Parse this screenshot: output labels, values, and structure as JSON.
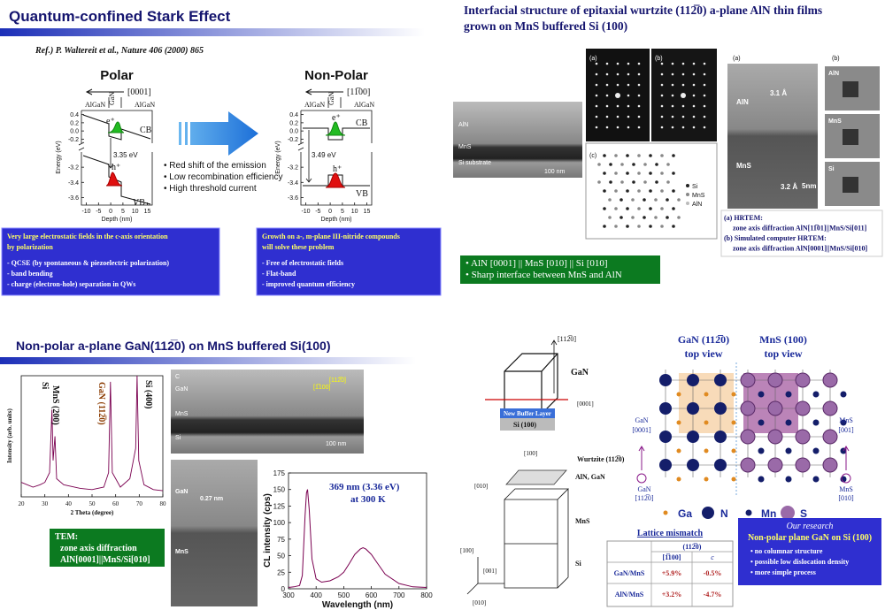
{
  "slides": [
    {
      "title": "Quantum-confined Stark Effect",
      "reference": "Ref.) P. Waltereit et al., Nature 406 (2000) 865",
      "polar": {
        "heading": "Polar",
        "direction": "[0001]",
        "layers": [
          "AlGaN",
          "GaN",
          "AlGaN"
        ],
        "electron": "e⁺",
        "hole": "h⁺",
        "cb": "CB",
        "vb": "VB",
        "gap": "3.35 eV",
        "y_label": "Energy (eV)",
        "ylim": [
          -3.7,
          0.5
        ],
        "y_break": [
          -3.0,
          -0.3
        ],
        "yticks": [
          0.4,
          0.2,
          {
            "value": 0,
            "label": "0.0"
          },
          -0.2,
          -3.2,
          -3.4,
          -3.6
        ],
        "x_label": "Depth (nm)",
        "xlim": [
          -12,
          17
        ],
        "xticks": [
          -10,
          -5,
          0,
          5,
          10,
          15
        ]
      },
      "nonpolar": {
        "heading": "Non-Polar",
        "direction": "[11̅00]",
        "layers": [
          "AlGaN",
          "GaN",
          "AlGaN"
        ],
        "electron": "e⁺",
        "hole": "h⁺",
        "cb": "CB",
        "vb": "VB",
        "gap": "3.49 eV",
        "y_label": "Energy (eV)",
        "ylim": [
          -3.7,
          0.5
        ],
        "y_break": [
          -3.0,
          -0.3
        ],
        "yticks": [
          0.4,
          0.2,
          {
            "value": 0,
            "label": "0.0"
          },
          -0.2,
          -3.2,
          -3.4,
          -3.6
        ],
        "x_label": "Depth (nm)",
        "xlim": [
          -12,
          17
        ],
        "xticks": [
          -10,
          -5,
          0,
          5,
          10,
          15
        ]
      },
      "bullets": [
        "• Red shift of the emission",
        "• Low recombination efficiency",
        "• High threshold current"
      ],
      "left_box": [
        "Very large electrostatic fields in the c-axis orientation",
        "by polarization",
        "- QCSE (by spontaneous & piezoelectric polarization)",
        "- band bending",
        "- charge (electron-hole) separation in QWs"
      ],
      "right_box": [
        "Growth on a-, m-plane III-nitride compounds",
        "will solve these problem",
        "- Free of electrostatic fields",
        "- Flat-band",
        "- improved quantum efficiency"
      ]
    },
    {
      "title": [
        "Interfacial structure of epitaxial wurtzite (112̅0) a-plane AlN thin films",
        "grown on MnS buffered Si (100)"
      ],
      "tem_labels": [
        "AlN",
        "MnS",
        "Si substrate",
        "100 nm"
      ],
      "panels": [
        "(a)",
        "(b)",
        "(c)",
        "(a)",
        "(b)"
      ],
      "legend": [
        "Si",
        "MnS",
        "AlN"
      ],
      "hrtem_labels": [
        "AlN",
        "3.1 Å",
        "MnS",
        "3.2 Å",
        "5nm"
      ],
      "sim_labels": [
        "AlN",
        "MnS",
        "Si"
      ],
      "caption": [
        "(a) HRTEM:",
        "zone axis diffraction AlN[11̅01]||MnS/Si[011]",
        "(b) Simulated computer HRTEM:",
        "zone axis diffraction AlN[0001]||MnS/Si[010]"
      ],
      "box": [
        "• AlN [0001] || MnS [010] || Si [010]",
        "• Sharp interface between MnS and AlN"
      ]
    },
    {
      "title": "Non-polar a-plane GaN(112̅0) on MnS buffered Si(100)",
      "xrd": {
        "type": "line",
        "y_label": "Intensity (arb. units)",
        "x_label": "2 Theta (degree)",
        "xlim": [
          20,
          80
        ],
        "xticks": [
          20,
          30,
          40,
          50,
          60,
          70,
          80
        ],
        "ylim": [
          0,
          1
        ],
        "x": [
          20,
          25,
          28,
          30,
          32,
          33,
          33.5,
          34.3,
          35,
          38,
          45,
          50,
          55,
          57,
          57.8,
          58.6,
          62,
          66,
          68.5,
          69.1,
          69.8,
          72,
          76,
          80
        ],
        "values": [
          0.12,
          0.08,
          0.1,
          0.12,
          0.2,
          0.72,
          0.3,
          0.5,
          0.15,
          0.1,
          0.07,
          0.06,
          0.08,
          0.2,
          0.95,
          0.2,
          0.08,
          0.15,
          0.4,
          1.0,
          0.3,
          0.1,
          0.06,
          0.05
        ],
        "peaks": [
          "Si",
          "MnS (200)",
          "GaN (112̅0)",
          "Si (400)"
        ]
      },
      "tem_labels": [
        "C",
        "GaN",
        "MnS",
        "Si",
        "100 nm",
        "[112̅0]",
        "[1̅100]"
      ],
      "hrtem_labels": [
        "GaN",
        "0.27 nm",
        "MnS"
      ],
      "box": [
        "TEM:",
        "zone axis diffraction",
        "AlN[0001]||MnS/Si[010]"
      ],
      "cl": {
        "type": "line",
        "y_label": "CL intensity (cps)",
        "x_label": "Wavelength (nm)",
        "xlim": [
          300,
          800
        ],
        "xticks": [
          300,
          400,
          500,
          600,
          700,
          800
        ],
        "ylim": [
          0,
          175
        ],
        "yticks": [
          0,
          25,
          50,
          75,
          100,
          125,
          150,
          175
        ],
        "annotation": [
          "369 nm (3.36 eV)",
          "at 300 K"
        ],
        "x": [
          300,
          320,
          340,
          350,
          360,
          365,
          369,
          375,
          385,
          400,
          420,
          450,
          480,
          500,
          520,
          540,
          560,
          570,
          580,
          600,
          620,
          650,
          700,
          750,
          800
        ],
        "values": [
          2,
          3,
          5,
          20,
          110,
          145,
          150,
          120,
          45,
          15,
          10,
          12,
          18,
          25,
          38,
          52,
          60,
          62,
          60,
          52,
          40,
          22,
          8,
          3,
          2
        ]
      }
    },
    {
      "crystal": [
        "[112̅0]",
        "GaN",
        "[0001]",
        "New Buffer Layer",
        "Si (100)"
      ],
      "stack": [
        "[100]",
        "Wurtzite (112̅0)",
        "[010]",
        "AlN, GaN",
        "MnS",
        "Si",
        "[100]",
        "[001]",
        "[010]"
      ],
      "top_view": [
        "GaN (112̅0)",
        "top view",
        "MnS (100)",
        "top view"
      ],
      "directions": [
        "GaN",
        "[0001]",
        "GaN",
        "[112̅0]",
        "MnS",
        "[001]",
        "MnS",
        "[010]"
      ],
      "legend": [
        "Ga",
        "N",
        "Mn",
        "S"
      ],
      "table": {
        "title": "Lattice mismatch",
        "header": [
          "(112̅0)",
          "[1̅100]",
          "c"
        ],
        "rows": [
          [
            "GaN/MnS",
            "+5.9%",
            "-0.5%"
          ],
          [
            "AlN/MnS",
            "+3.2%",
            "-4.7%"
          ]
        ]
      },
      "research": [
        "Our research",
        "Non-polar plane GaN on Si (100)",
        "• no columnar structure",
        "• possible low dislocation density",
        "• more simple process"
      ]
    }
  ]
}
